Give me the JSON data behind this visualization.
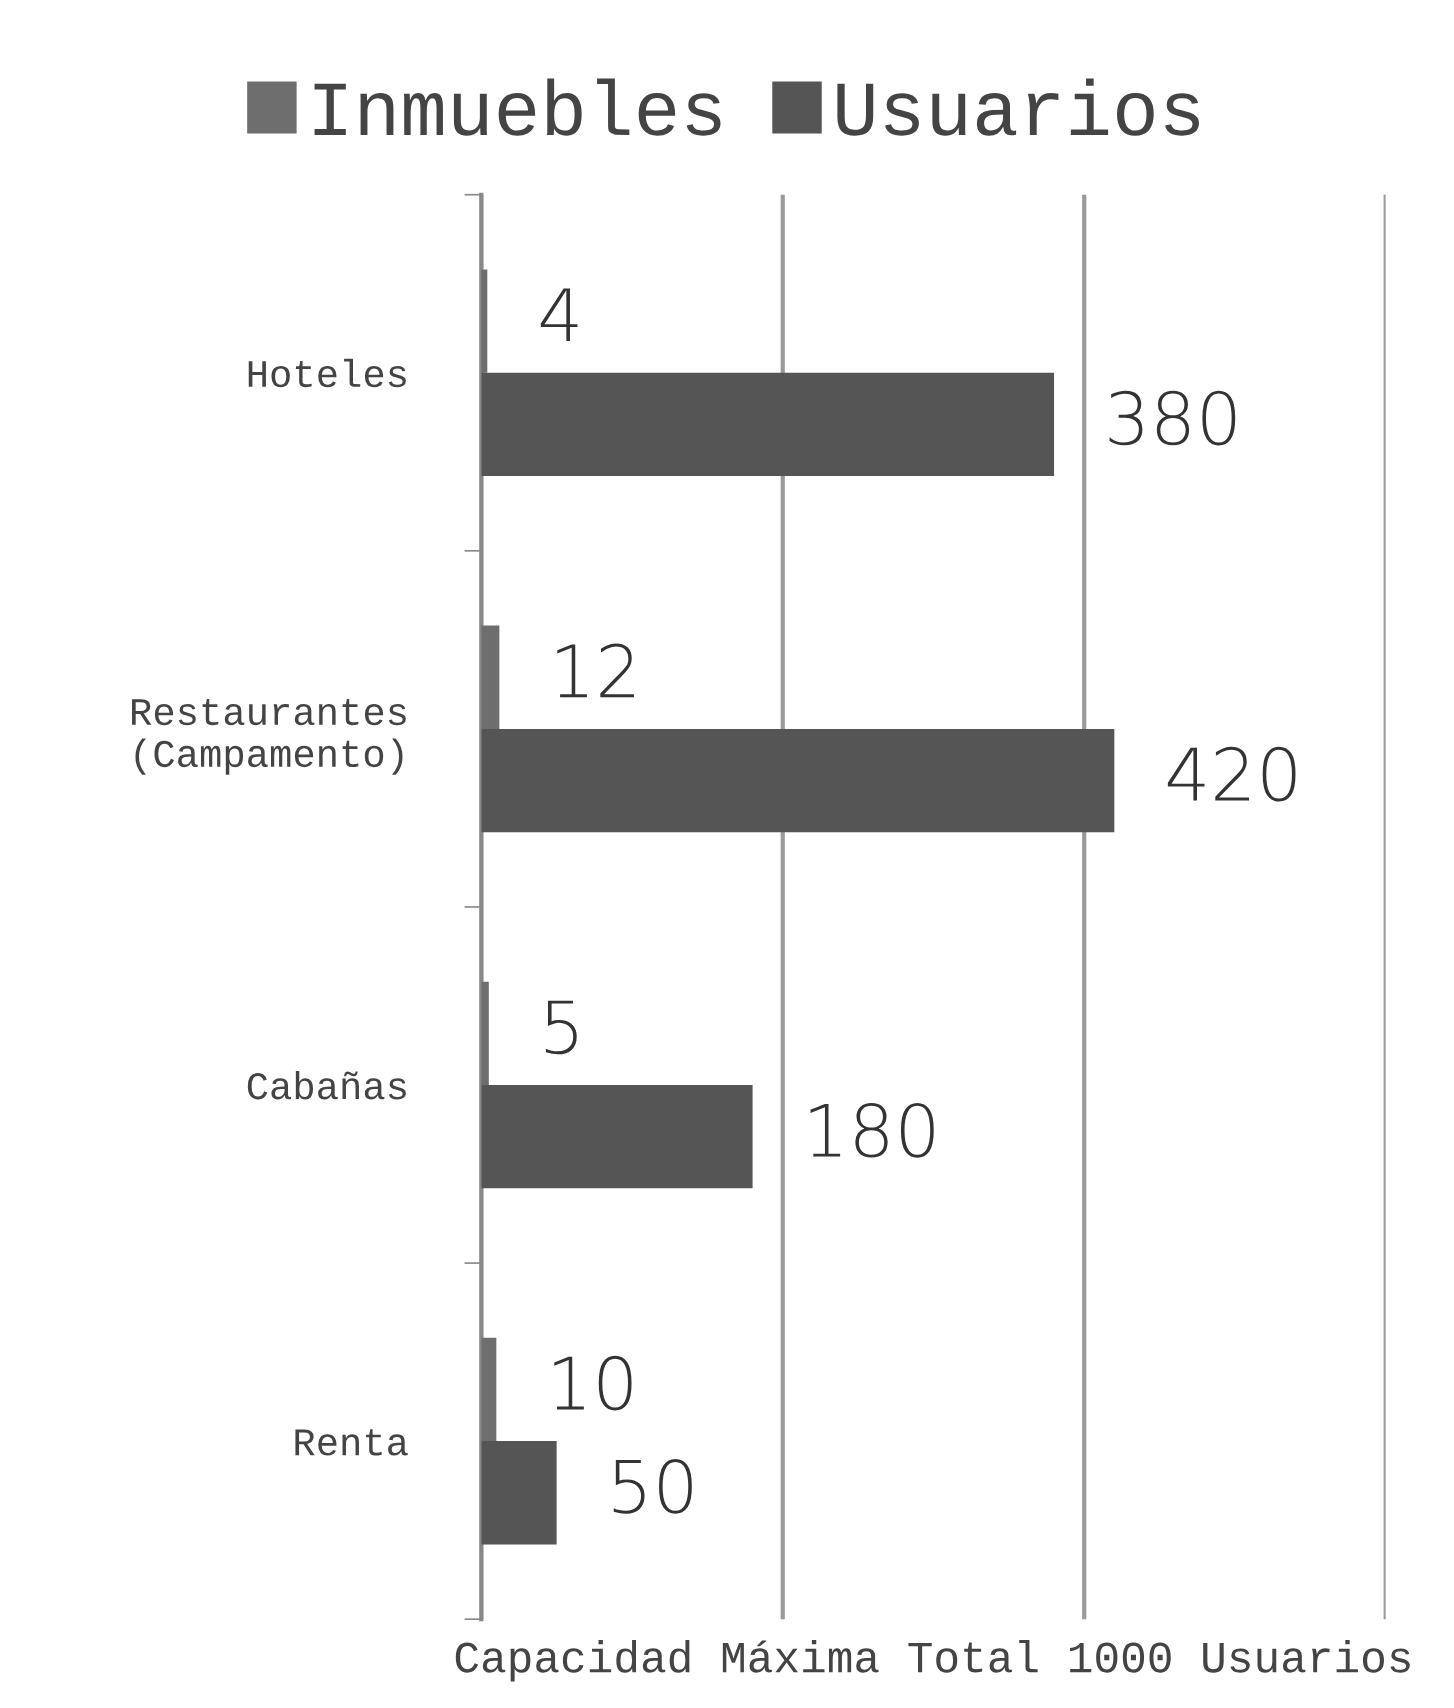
{
  "chart_data": {
    "type": "bar",
    "orientation": "horizontal",
    "xlabel": "Capacidad Máxima Total 1000 Usuarios",
    "categories": [
      "Hoteles",
      "Restaurantes\n(Campamento)",
      "Cabañas",
      "Renta"
    ],
    "series": [
      {
        "name": "Inmuebles",
        "color": "#6e6e6e",
        "values": [
          4,
          12,
          5,
          10
        ]
      },
      {
        "name": "Usuarios",
        "color": "#555555",
        "values": [
          380,
          420,
          180,
          50
        ]
      }
    ],
    "xlim": [
      0,
      600
    ],
    "xticks": [
      {
        "value": 0,
        "label": null
      },
      {
        "value": 200,
        "label": null
      },
      {
        "value": 400,
        "label": null
      },
      {
        "value": 600,
        "label": null
      }
    ],
    "grid": "x",
    "legend": "top",
    "data_labels": true
  }
}
